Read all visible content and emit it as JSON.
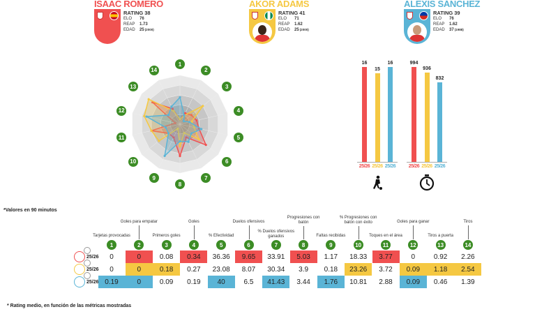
{
  "players": [
    {
      "name": "ISAAC ROMERO",
      "rating_label": "RATING",
      "rating": "38",
      "elo_label": "ELO",
      "elo": "76",
      "reap_label": "REAP",
      "reap": "1.73",
      "edad_label": "EDAD",
      "edad": "25",
      "birth": "(2000)",
      "color": "#f05050",
      "flag": "spain",
      "photo": false
    },
    {
      "name": "AKOR ADAMS",
      "rating_label": "RATING",
      "rating": "41",
      "elo_label": "ELO",
      "elo": "71",
      "reap_label": "REAP",
      "reap": "1.62",
      "edad_label": "EDAD",
      "edad": "25",
      "birth": "(2000)",
      "color": "#f5c842",
      "flag": "nigeria",
      "photo": true
    },
    {
      "name": "ALEXIS SÁNCHEZ",
      "rating_label": "RATING",
      "rating": "39",
      "elo_label": "ELO",
      "elo": "76",
      "reap_label": "REAP",
      "reap": "1.62",
      "edad_label": "EDAD",
      "edad": "37",
      "birth": "(1988)",
      "color": "#5ab4d6",
      "flag": "chile",
      "photo": true
    }
  ],
  "radar": {
    "axes": [
      "1",
      "2",
      "3",
      "4",
      "5",
      "6",
      "7",
      "8",
      "9",
      "10",
      "11",
      "12",
      "13",
      "14"
    ],
    "series": [
      {
        "player": "ISAAC ROMERO",
        "color": "#f05050",
        "values": [
          0.1,
          0.25,
          0.3,
          0.35,
          0.4,
          0.68,
          0.3,
          0.65,
          0.3,
          0.3,
          0.6,
          0.1,
          0.72,
          0.35
        ]
      },
      {
        "player": "AKOR ADAMS",
        "color": "#f5c842",
        "values": [
          0.1,
          0.2,
          0.6,
          0.25,
          0.3,
          0.5,
          0.2,
          0.45,
          0.1,
          0.55,
          0.6,
          0.75,
          0.82,
          0.3
        ]
      },
      {
        "player": "ALEXIS SÁNCHEZ",
        "color": "#5ab4d6",
        "values": [
          0.55,
          0.2,
          0.1,
          0.2,
          0.45,
          0.3,
          0.4,
          0.35,
          0.72,
          0.3,
          0.3,
          0.7,
          0.3,
          0.4
        ]
      }
    ]
  },
  "bars": [
    {
      "icon": "football-player-icon",
      "values": [
        "16",
        "15",
        "16"
      ],
      "numbers": [
        16,
        15,
        16
      ],
      "max": 16,
      "labels": [
        "25/26",
        "25/26",
        "25/26"
      ]
    },
    {
      "icon": "stopwatch-icon",
      "values": [
        "994",
        "936",
        "832"
      ],
      "numbers": [
        994,
        936,
        832
      ],
      "max": 994,
      "labels": [
        "25/26",
        "25/26",
        "25/26"
      ]
    }
  ],
  "note_top": "*Valores en 90 minutos",
  "note_bottom": "* Rating medio, en función de las métricas mostradas",
  "table": {
    "columns": [
      {
        "num": "1",
        "label": "Tarjetas provocadas"
      },
      {
        "num": "2",
        "label": "Goles para empatar"
      },
      {
        "num": "3",
        "label": "Primeros goles"
      },
      {
        "num": "4",
        "label": "Goles"
      },
      {
        "num": "5",
        "label": "% Efectividad"
      },
      {
        "num": "6",
        "label": "Duelos ofensivos"
      },
      {
        "num": "7",
        "label": "% Duelos ofensivos ganados"
      },
      {
        "num": "8",
        "label": "Progresiones con balón"
      },
      {
        "num": "9",
        "label": "Faltas recibidas"
      },
      {
        "num": "10",
        "label": "% Progresiones con balón con éxito"
      },
      {
        "num": "11",
        "label": "Toques en el área"
      },
      {
        "num": "12",
        "label": "Goles para ganar"
      },
      {
        "num": "13",
        "label": "Tiros a puerta"
      },
      {
        "num": "14",
        "label": "Tiros"
      }
    ],
    "rows": [
      {
        "season": "25/26",
        "color": "#f05050",
        "values": [
          "0",
          "0",
          "0.08",
          "0.34",
          "36.36",
          "9.65",
          "33.91",
          "5.03",
          "1.17",
          "18.33",
          "3.77",
          "0",
          "0.92",
          "2.26"
        ],
        "highlight": [
          0,
          1,
          0,
          1,
          0,
          1,
          0,
          1,
          0,
          0,
          1,
          0,
          0,
          0
        ]
      },
      {
        "season": "25/26",
        "color": "#f5c842",
        "values": [
          "0",
          "0",
          "0.18",
          "0.27",
          "23.08",
          "8.07",
          "30.34",
          "3.9",
          "0.18",
          "23.26",
          "3.72",
          "0.09",
          "1.18",
          "2.54"
        ],
        "highlight": [
          0,
          1,
          1,
          0,
          0,
          0,
          0,
          0,
          0,
          1,
          0,
          1,
          1,
          1
        ]
      },
      {
        "season": "25/26",
        "color": "#5ab4d6",
        "values": [
          "0.19",
          "0",
          "0.09",
          "0.19",
          "40",
          "6.5",
          "41.43",
          "3.44",
          "1.76",
          "10.81",
          "2.88",
          "0.09",
          "0.46",
          "1.39"
        ],
        "highlight": [
          1,
          1,
          0,
          0,
          1,
          0,
          1,
          0,
          1,
          0,
          0,
          1,
          0,
          0
        ]
      }
    ]
  }
}
